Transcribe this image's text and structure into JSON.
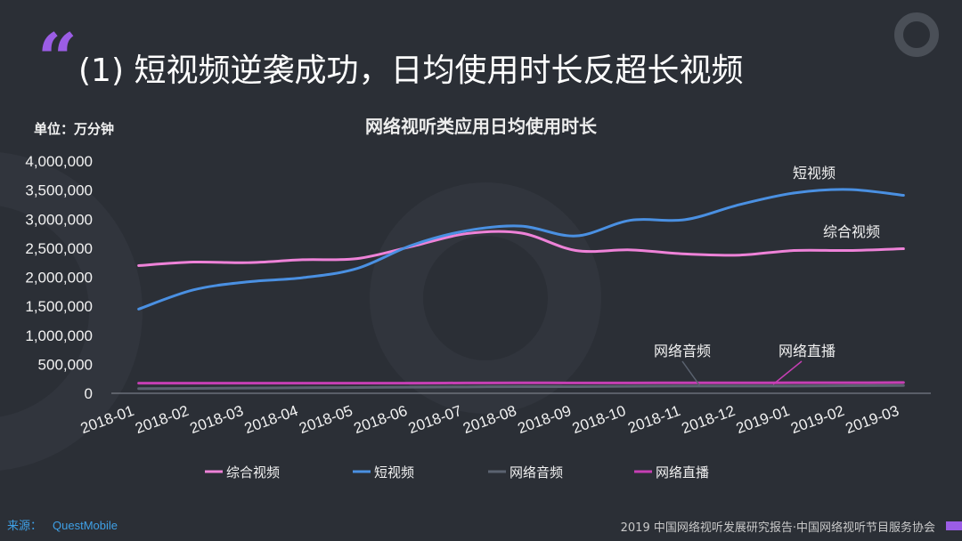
{
  "slide": {
    "quote_mark": "“",
    "title": "(1) 短视频逆袭成功，日均使用时长反超长视频",
    "unit_label": "单位：万分钟",
    "source_label": "来源：",
    "source_name": "QuestMobile",
    "footer": "2019 中国网络视听发展研究报告·中国网络视听节目服务协会",
    "accent_color": "#9b5de5"
  },
  "chart_data": {
    "type": "line",
    "title": "网络视听类应用日均使用时长",
    "ylabel": "单位：万分钟",
    "ylim": [
      0,
      4000000
    ],
    "yticks": [
      0,
      500000,
      1000000,
      1500000,
      2000000,
      2500000,
      3000000,
      3500000,
      4000000
    ],
    "ytick_labels": [
      "0",
      "500,000",
      "1,000,000",
      "1,500,000",
      "2,000,000",
      "2,500,000",
      "3,000,000",
      "3,500,000",
      "4,000,000"
    ],
    "categories": [
      "2018-01",
      "2018-02",
      "2018-03",
      "2018-04",
      "2018-05",
      "2018-06",
      "2018-07",
      "2018-08",
      "2018-09",
      "2018-10",
      "2018-11",
      "2018-12",
      "2019-01",
      "2019-02",
      "2019-03"
    ],
    "grid": false,
    "legend_position": "bottom",
    "series": [
      {
        "name": "综合视频",
        "color": "#ee82d8",
        "values": [
          2200000,
          2260000,
          2250000,
          2300000,
          2320000,
          2530000,
          2750000,
          2760000,
          2460000,
          2470000,
          2400000,
          2380000,
          2460000,
          2460000,
          2490000
        ]
      },
      {
        "name": "短视频",
        "color": "#4a90e2",
        "values": [
          1450000,
          1780000,
          1920000,
          1990000,
          2150000,
          2550000,
          2800000,
          2880000,
          2710000,
          2980000,
          2990000,
          3250000,
          3450000,
          3510000,
          3410000
        ]
      },
      {
        "name": "网络音频",
        "color": "#5b6370",
        "values": [
          80000,
          85000,
          90000,
          95000,
          100000,
          105000,
          110000,
          115000,
          115000,
          120000,
          125000,
          125000,
          125000,
          130000,
          135000
        ]
      },
      {
        "name": "网络直播",
        "color": "#c63fb4",
        "values": [
          175000,
          175000,
          175000,
          175000,
          175000,
          175000,
          178000,
          180000,
          178000,
          178000,
          180000,
          180000,
          182000,
          182000,
          185000
        ]
      }
    ],
    "annotations": [
      {
        "text": "短视频",
        "series": "短视频"
      },
      {
        "text": "综合视频",
        "series": "综合视频"
      },
      {
        "text": "网络音频",
        "series": "网络音频"
      },
      {
        "text": "网络直播",
        "series": "网络直播"
      }
    ]
  }
}
